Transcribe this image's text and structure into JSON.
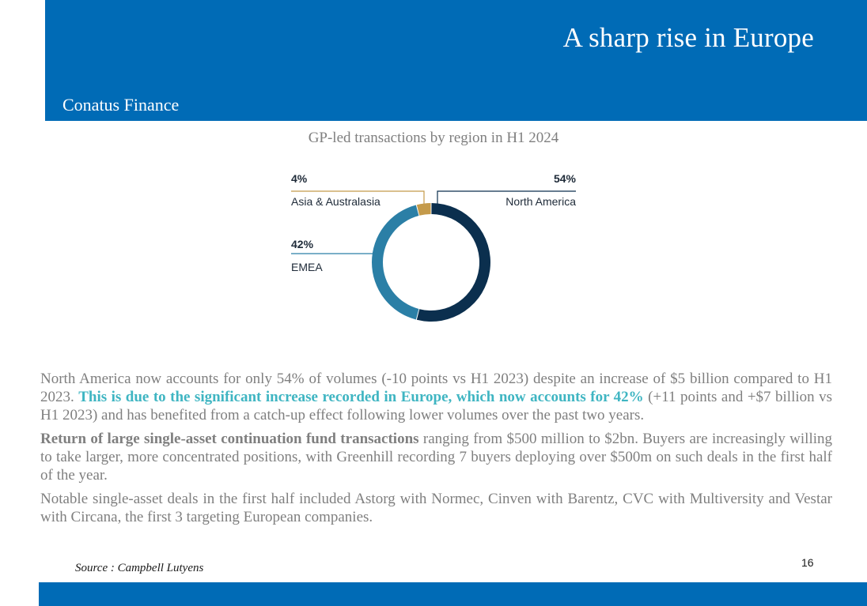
{
  "header": {
    "title": "A sharp rise in Europe",
    "brand": "Conatus Finance",
    "color": "#006bb6"
  },
  "chart_data": {
    "type": "pie",
    "title": "GP-led transactions by region in H1 2024",
    "categories": [
      "North America",
      "EMEA",
      "Asia & Australasia"
    ],
    "values": [
      54,
      42,
      4
    ],
    "labels": [
      "54%",
      "42%",
      "4%"
    ],
    "colors": [
      "#0b2f4e",
      "#2b7fa6",
      "#c49a4a"
    ],
    "donut": true
  },
  "body": {
    "p1_a": "North America now accounts for only 54% of volumes (-10 points vs H1 2023) despite an increase of $5 billion compared to H1 2023. ",
    "p1_hl": "This is due to the significant increase recorded in Europe, which now accounts for 42%",
    "p1_b": " (+11 points and +$7 billion vs H1 2023) and has benefited from a catch-up effect following lower volumes over the past two years.",
    "p2_bold": "Return of large single-asset continuation fund transactions",
    "p2_rest": " ranging from $500 million to $2bn. Buyers are increasingly willing to take larger, more concentrated positions, with Greenhill recording 7 buyers deploying over $500m on such deals in the first half of the year.",
    "p3": "Notable single-asset deals in the first half included Astorg with Normec, Cinven with Barentz, CVC with Multiversity and Vestar with Circana, the first 3 targeting European companies."
  },
  "footer": {
    "source": "Source : Campbell Lutyens",
    "page_number": "16"
  }
}
